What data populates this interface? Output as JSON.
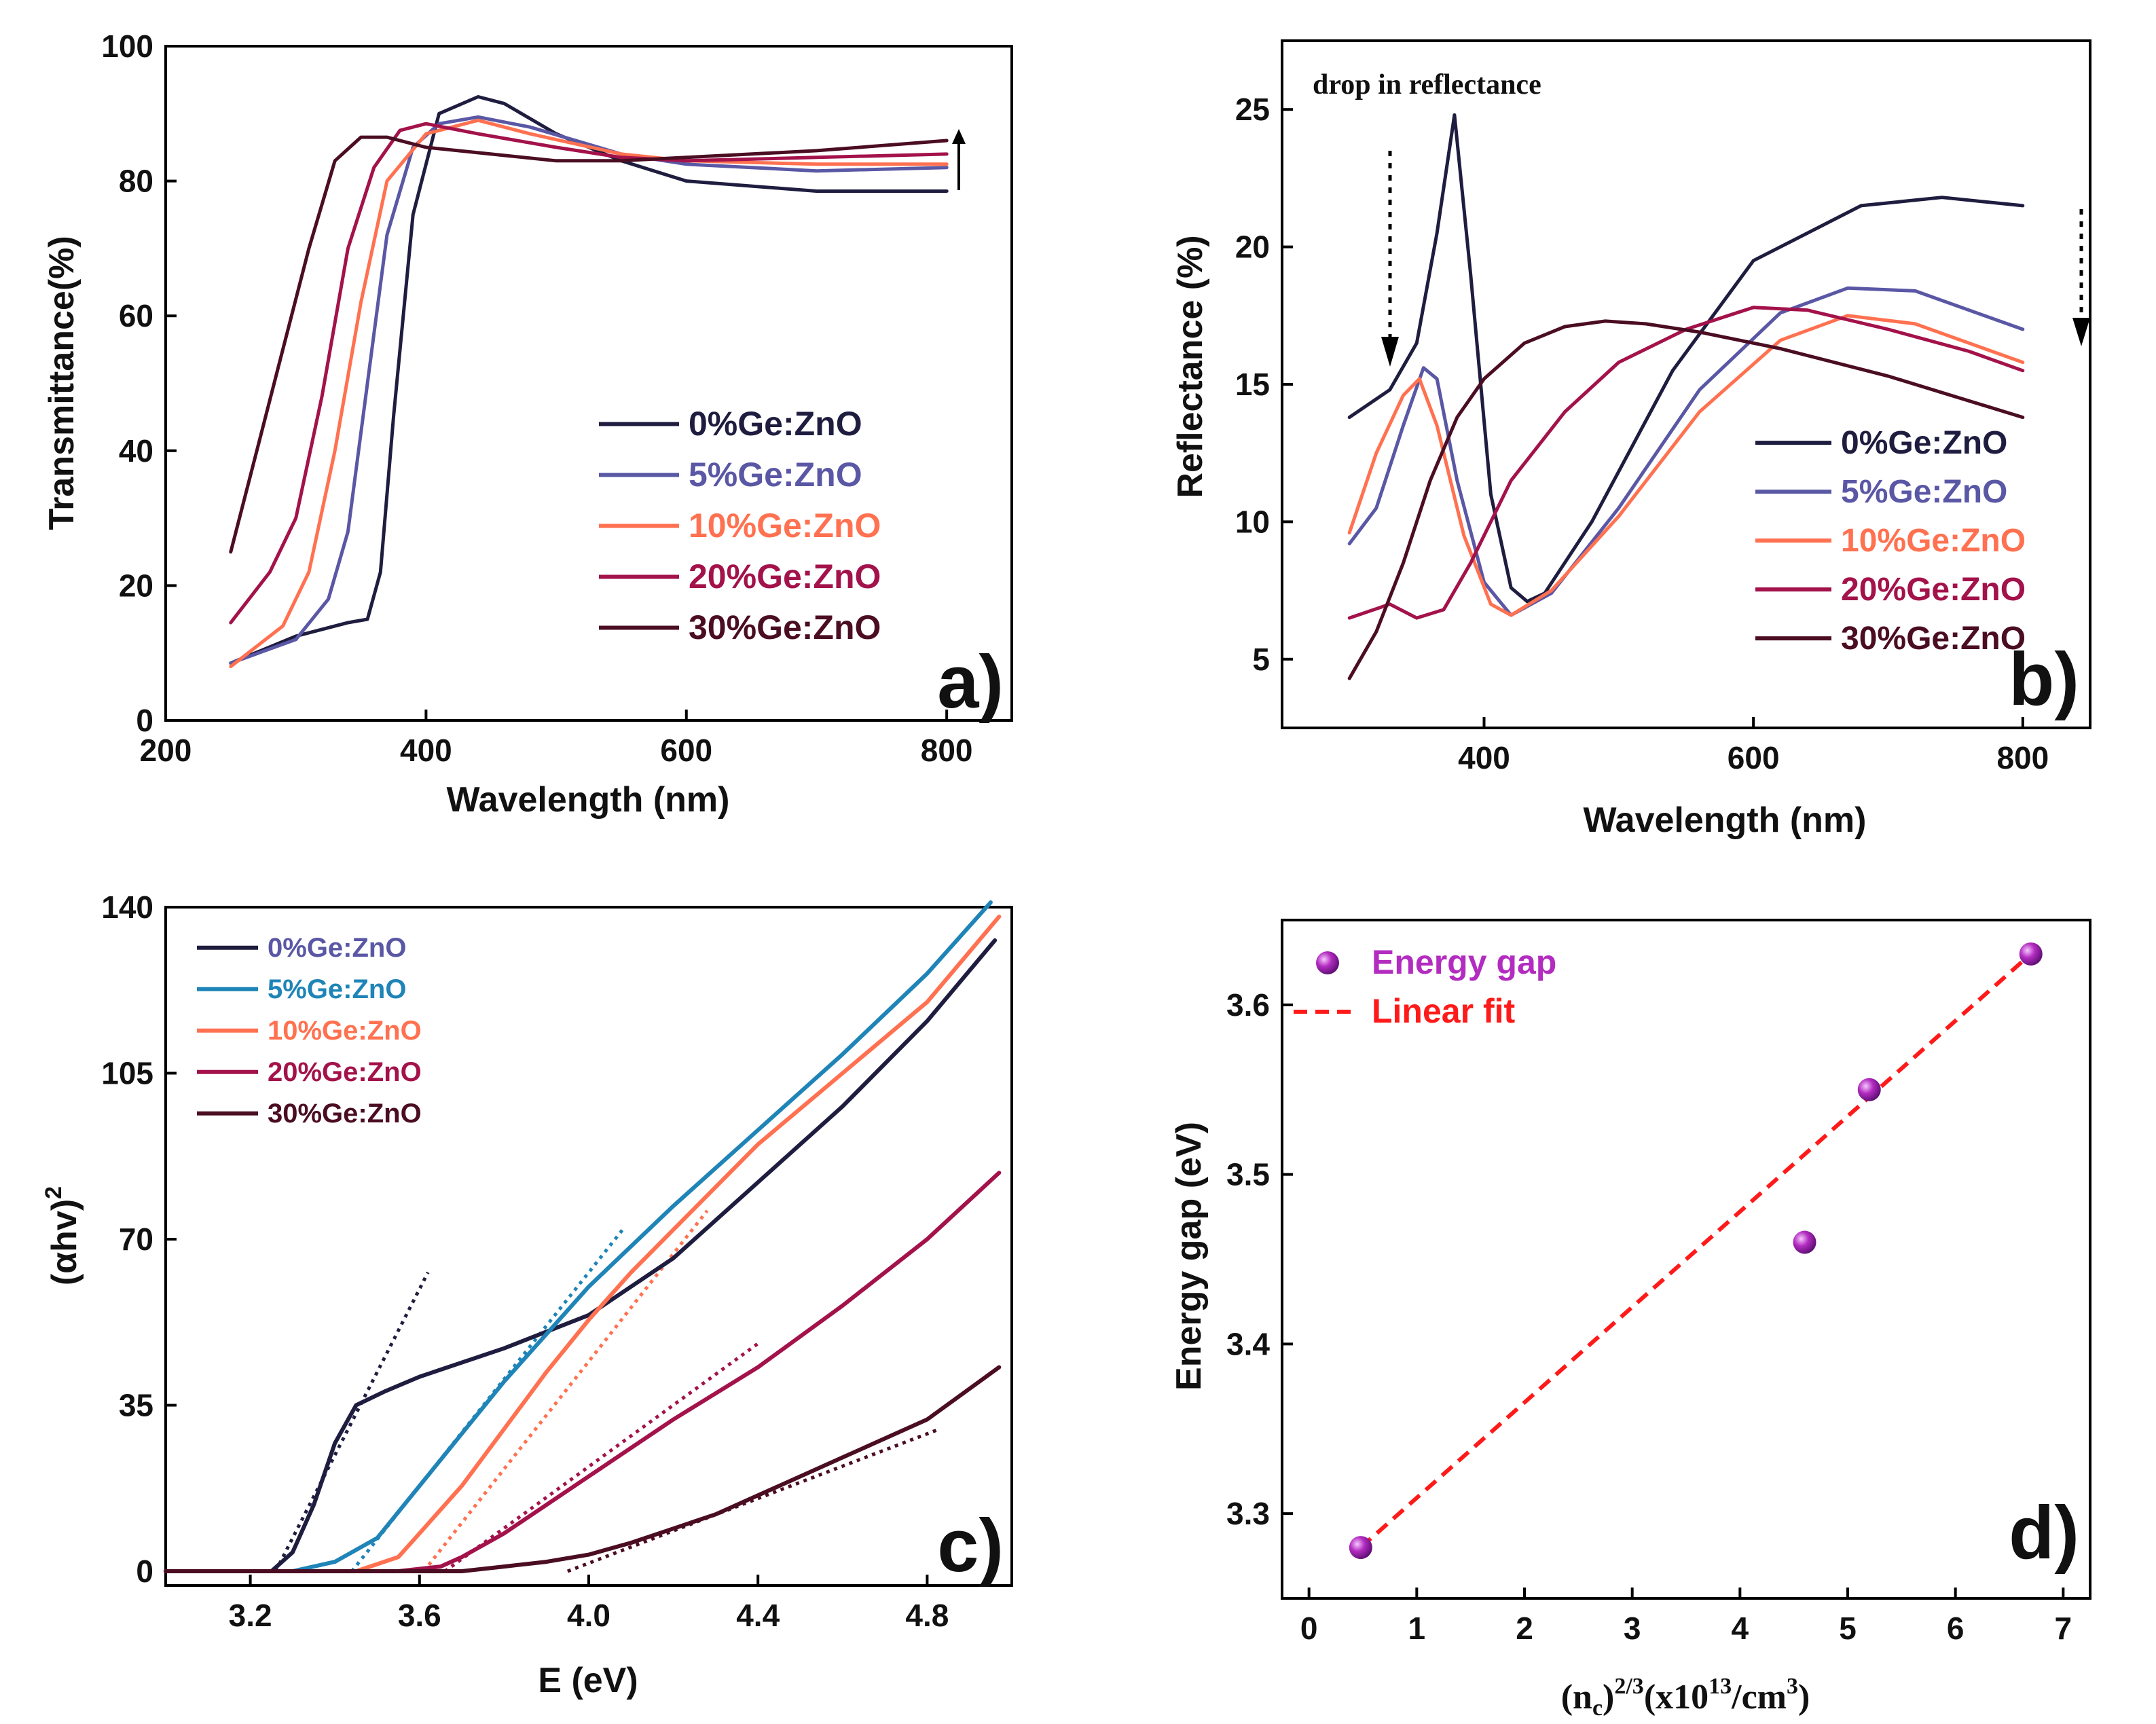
{
  "colors": {
    "c0": "#1f1d3f",
    "c5_ab": "#5a57a5",
    "c5_c": "#1f84b7",
    "c10": "#ff7150",
    "c20": "#a3124a",
    "c30": "#4b0d22",
    "legend5_c": "#5a57a5",
    "energy_marker": "#b32cc0",
    "fit_line": "#ff1a1a",
    "axis": "#000000"
  },
  "panels": {
    "a": {
      "letter": "a)",
      "xlabel": "Wavelength (nm)",
      "ylabel": "Transmittance(%)",
      "xticks": [
        "200",
        "400",
        "600",
        "800"
      ],
      "yticks": [
        "0",
        "20",
        "40",
        "60",
        "80",
        "100"
      ],
      "legend": [
        "0%Ge:ZnO",
        "5%Ge:ZnO",
        "10%Ge:ZnO",
        "20%Ge:ZnO",
        "30%Ge:ZnO"
      ]
    },
    "b": {
      "letter": "b)",
      "annotation": "drop in reflectance",
      "xlabel": "Wavelength (nm)",
      "ylabel": "Reflectance (%)",
      "xticks": [
        "400",
        "600",
        "800"
      ],
      "yticks": [
        "5",
        "10",
        "15",
        "20",
        "25"
      ],
      "legend": [
        "0%Ge:ZnO",
        "5%Ge:ZnO",
        "10%Ge:ZnO",
        "20%Ge:ZnO",
        "30%Ge:ZnO"
      ]
    },
    "c": {
      "letter": "c)",
      "xlabel": "E (eV)",
      "ylabel_main": "(αhv)",
      "ylabel_sup": "2",
      "xticks": [
        "3.2",
        "3.6",
        "4.0",
        "4.4",
        "4.8"
      ],
      "yticks": [
        "0",
        "35",
        "70",
        "105",
        "140"
      ],
      "legend": [
        "0%Ge:ZnO",
        "5%Ge:ZnO",
        "10%Ge:ZnO",
        "20%Ge:ZnO",
        "30%Ge:ZnO"
      ]
    },
    "d": {
      "letter": "d)",
      "xlabel_a": "(n",
      "xlabel_sub": "c",
      "xlabel_b": ")",
      "xlabel_sup": "2/3",
      "xlabel_c": "(x10",
      "xlabel_sup2": "13",
      "xlabel_d": "/cm",
      "xlabel_sup3": "3",
      "xlabel_e": ")",
      "ylabel": "Energy gap (eV)",
      "xticks": [
        "0",
        "1",
        "2",
        "3",
        "4",
        "5",
        "6",
        "7"
      ],
      "yticks": [
        "3.3",
        "3.4",
        "3.5",
        "3.6"
      ],
      "legend": [
        "Energy gap",
        "Linear fit"
      ]
    }
  },
  "chart_data": [
    {
      "type": "line",
      "panel": "a",
      "title": "",
      "xlabel": "Wavelength (nm)",
      "ylabel": "Transmittance(%)",
      "xlim": [
        200,
        850
      ],
      "ylim": [
        0,
        100
      ],
      "annotation_arrow": "upward arrow near 800 nm",
      "series": [
        {
          "name": "0%Ge:ZnO",
          "x": [
            250,
            300,
            340,
            355,
            365,
            375,
            390,
            410,
            440,
            460,
            500,
            550,
            600,
            700,
            800
          ],
          "y": [
            8.5,
            12.5,
            14.5,
            15,
            22,
            45,
            75,
            90,
            92.5,
            91.5,
            87,
            83,
            80,
            78.5,
            78.5
          ]
        },
        {
          "name": "5%Ge:ZnO",
          "x": [
            250,
            300,
            325,
            340,
            355,
            370,
            390,
            410,
            440,
            480,
            550,
            600,
            700,
            800
          ],
          "y": [
            8.5,
            12,
            18,
            28,
            50,
            72,
            85,
            88.5,
            89.5,
            88,
            84,
            82.5,
            81.5,
            82
          ]
        },
        {
          "name": "10%Ge:ZnO",
          "x": [
            250,
            290,
            310,
            330,
            350,
            370,
            400,
            440,
            480,
            550,
            600,
            700,
            800
          ],
          "y": [
            8,
            14,
            22,
            40,
            62,
            80,
            87,
            89,
            87,
            84,
            83,
            82.5,
            82.5
          ]
        },
        {
          "name": "20%Ge:ZnO",
          "x": [
            250,
            280,
            300,
            320,
            340,
            360,
            380,
            400,
            440,
            500,
            550,
            600,
            700,
            800
          ],
          "y": [
            14.5,
            22,
            30,
            48,
            70,
            82,
            87.5,
            88.5,
            87,
            85,
            83.5,
            83,
            83.5,
            84
          ]
        },
        {
          "name": "30%Ge:ZnO",
          "x": [
            250,
            270,
            290,
            310,
            330,
            350,
            370,
            400,
            450,
            500,
            550,
            600,
            700,
            800
          ],
          "y": [
            25,
            40,
            55,
            70,
            83,
            86.5,
            86.5,
            85,
            84,
            83,
            83,
            83.5,
            84.5,
            86
          ]
        }
      ]
    },
    {
      "type": "line",
      "panel": "b",
      "title": "",
      "xlabel": "Wavelength (nm)",
      "ylabel": "Reflectance (%)",
      "xlim": [
        250,
        850
      ],
      "ylim": [
        2.5,
        27.5
      ],
      "annotation": "drop in reflectance",
      "series": [
        {
          "name": "0%Ge:ZnO",
          "x": [
            300,
            330,
            350,
            365,
            378,
            390,
            405,
            420,
            432,
            445,
            480,
            540,
            600,
            680,
            740,
            800
          ],
          "y": [
            13.8,
            14.8,
            16.5,
            20.5,
            24.8,
            19,
            11,
            7.6,
            7.1,
            7.4,
            10,
            15.5,
            19.5,
            21.5,
            21.8,
            21.5
          ]
        },
        {
          "name": "5%Ge:ZnO",
          "x": [
            300,
            320,
            340,
            355,
            365,
            380,
            400,
            420,
            450,
            500,
            560,
            620,
            670,
            720,
            800
          ],
          "y": [
            9.2,
            10.5,
            13.5,
            15.6,
            15.2,
            11.5,
            7.8,
            6.6,
            7.4,
            10.5,
            14.8,
            17.6,
            18.5,
            18.4,
            17
          ]
        },
        {
          "name": "10%Ge:ZnO",
          "x": [
            300,
            320,
            340,
            352,
            365,
            385,
            405,
            420,
            450,
            500,
            560,
            620,
            670,
            720,
            800
          ],
          "y": [
            9.6,
            12.5,
            14.6,
            15.2,
            13.5,
            9.5,
            7,
            6.6,
            7.5,
            10.2,
            14,
            16.6,
            17.5,
            17.2,
            15.8
          ]
        },
        {
          "name": "20%Ge:ZnO",
          "x": [
            300,
            330,
            350,
            370,
            390,
            420,
            460,
            500,
            550,
            600,
            640,
            700,
            760,
            800
          ],
          "y": [
            6.5,
            7,
            6.5,
            6.8,
            8.5,
            11.5,
            14,
            15.8,
            17,
            17.8,
            17.7,
            17,
            16.2,
            15.5
          ]
        },
        {
          "name": "30%Ge:ZnO",
          "x": [
            300,
            320,
            340,
            360,
            380,
            400,
            430,
            460,
            490,
            520,
            560,
            620,
            700,
            800
          ],
          "y": [
            4.3,
            6,
            8.5,
            11.5,
            13.8,
            15.2,
            16.5,
            17.1,
            17.3,
            17.2,
            16.9,
            16.3,
            15.3,
            13.8
          ]
        }
      ]
    },
    {
      "type": "line",
      "panel": "c",
      "title": "",
      "xlabel": "E (eV)",
      "ylabel": "(αhv)2",
      "xlim": [
        3.0,
        5.0
      ],
      "ylim": [
        -3,
        140
      ],
      "series": [
        {
          "name": "0%Ge:ZnO",
          "x": [
            3.0,
            3.25,
            3.3,
            3.35,
            3.4,
            3.45,
            3.52,
            3.6,
            3.8,
            4.0,
            4.2,
            4.4,
            4.6,
            4.8,
            4.96
          ],
          "y": [
            0,
            0,
            4,
            14,
            27,
            35,
            38,
            41,
            47,
            54,
            66,
            82,
            98,
            116,
            133
          ]
        },
        {
          "name": "5%Ge:ZnO",
          "x": [
            3.0,
            3.3,
            3.4,
            3.5,
            3.6,
            3.7,
            3.8,
            3.9,
            4.0,
            4.2,
            4.4,
            4.6,
            4.8,
            4.95
          ],
          "y": [
            0,
            0,
            2,
            7,
            18,
            29,
            40,
            50,
            60,
            77,
            93,
            109,
            126,
            141
          ]
        },
        {
          "name": "10%Ge:ZnO",
          "x": [
            3.0,
            3.45,
            3.55,
            3.6,
            3.7,
            3.8,
            3.9,
            4.0,
            4.1,
            4.2,
            4.4,
            4.6,
            4.8,
            4.97
          ],
          "y": [
            0,
            0,
            3,
            8,
            18,
            30,
            42,
            53,
            63,
            72,
            90,
            105,
            120,
            138
          ]
        },
        {
          "name": "20%Ge:ZnO",
          "x": [
            3.0,
            3.55,
            3.65,
            3.7,
            3.8,
            3.9,
            4.0,
            4.1,
            4.2,
            4.4,
            4.6,
            4.8,
            4.97
          ],
          "y": [
            0,
            0,
            1,
            3,
            8,
            14,
            20,
            26,
            32,
            43,
            56,
            70,
            84
          ]
        },
        {
          "name": "30%Ge:ZnO",
          "x": [
            3.0,
            3.7,
            3.8,
            3.9,
            4.0,
            4.1,
            4.2,
            4.3,
            4.4,
            4.6,
            4.8,
            4.97
          ],
          "y": [
            0,
            0,
            1,
            2,
            3.5,
            6,
            9,
            12,
            16,
            24,
            32,
            43
          ]
        }
      ],
      "tangents": [
        {
          "name": "0%Ge:ZnO",
          "x": [
            3.26,
            3.62
          ],
          "y": [
            0,
            63
          ]
        },
        {
          "name": "5%Ge:ZnO",
          "x": [
            3.44,
            4.08
          ],
          "y": [
            0,
            72
          ]
        },
        {
          "name": "10%Ge:ZnO",
          "x": [
            3.61,
            4.28
          ],
          "y": [
            0,
            76
          ]
        },
        {
          "name": "20%Ge:ZnO",
          "x": [
            3.66,
            4.4
          ],
          "y": [
            0,
            48
          ]
        },
        {
          "name": "30%Ge:ZnO",
          "x": [
            3.95,
            4.83
          ],
          "y": [
            0,
            30
          ]
        }
      ]
    },
    {
      "type": "scatter",
      "panel": "d",
      "title": "",
      "xlabel": "(nc)2/3(x1013/cm3)",
      "ylabel": "Energy gap (eV)",
      "xlim": [
        -0.25,
        7.25
      ],
      "ylim": [
        3.25,
        3.65
      ],
      "series": [
        {
          "name": "Energy gap",
          "x": [
            0.48,
            4.6,
            5.2,
            6.7
          ],
          "y": [
            3.28,
            3.46,
            3.55,
            3.63
          ]
        }
      ],
      "fit": {
        "name": "Linear fit",
        "x": [
          0.48,
          6.7
        ],
        "y": [
          3.28,
          3.63
        ]
      }
    }
  ]
}
